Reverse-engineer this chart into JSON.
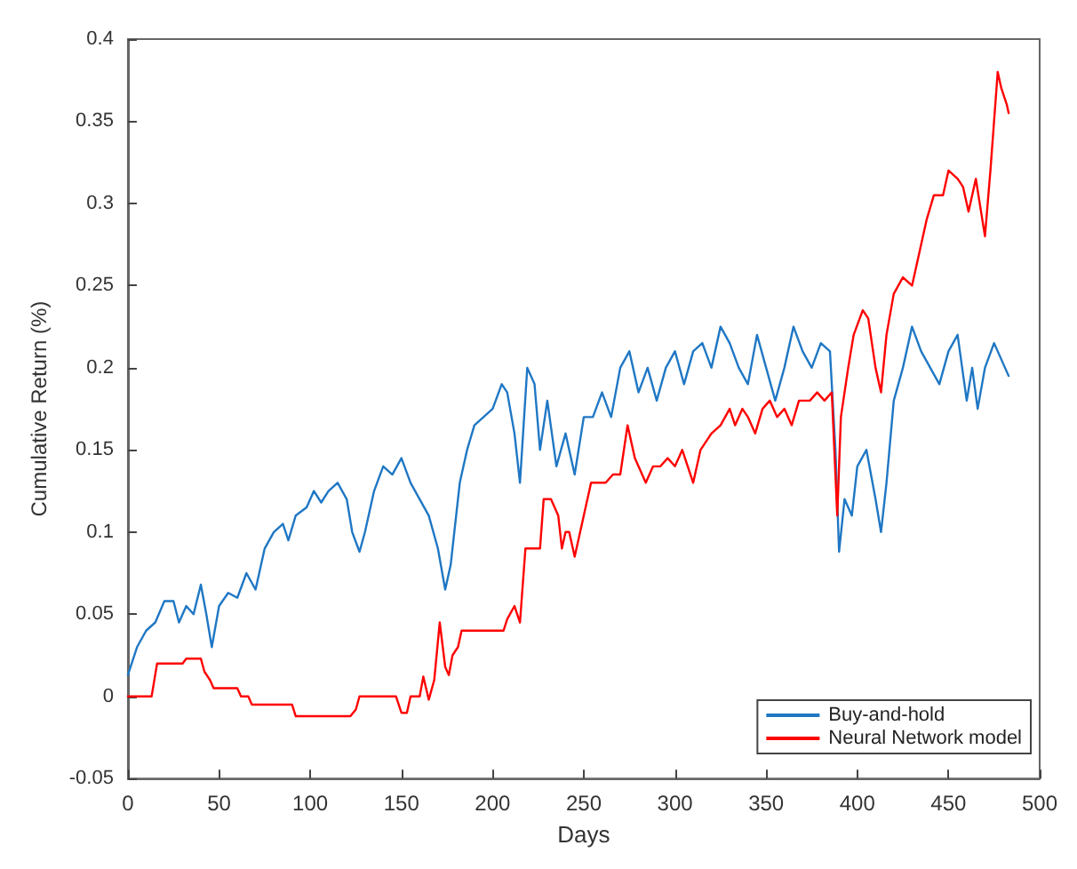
{
  "chart_data": {
    "type": "line",
    "xlabel": "Days",
    "ylabel": "Cumulative Return (%)",
    "xlim": [
      0,
      500
    ],
    "xticks": [
      0,
      50,
      100,
      150,
      200,
      250,
      300,
      350,
      400,
      450,
      500
    ],
    "ylim": [
      -0.05,
      0.4
    ],
    "yticks": [
      -0.05,
      0,
      0.05,
      0.1,
      0.15,
      0.2,
      0.25,
      0.3,
      0.35,
      0.4
    ],
    "grid": false,
    "legend": "bottom right",
    "marker": "none",
    "line_style": "solid",
    "series": [
      {
        "name": "Buy-and-hold",
        "color": "#1f77c4",
        "x": [
          0,
          5,
          10,
          15,
          20,
          25,
          28,
          32,
          36,
          40,
          43,
          46,
          50,
          55,
          60,
          65,
          70,
          75,
          80,
          85,
          88,
          92,
          98,
          102,
          106,
          110,
          115,
          120,
          123,
          127,
          130,
          135,
          140,
          145,
          150,
          155,
          160,
          165,
          170,
          174,
          177,
          182,
          186,
          190,
          195,
          200,
          205,
          208,
          212,
          215,
          219,
          223,
          226,
          230,
          235,
          240,
          245,
          250,
          255,
          260,
          265,
          270,
          275,
          280,
          285,
          290,
          295,
          300,
          305,
          310,
          315,
          320,
          325,
          330,
          335,
          340,
          345,
          350,
          355,
          360,
          365,
          370,
          375,
          380,
          385,
          388,
          390,
          393,
          397,
          400,
          405,
          410,
          413,
          416,
          420,
          425,
          430,
          435,
          440,
          445,
          450,
          455,
          460,
          463,
          466,
          470,
          475,
          479,
          483
        ],
        "values": [
          0.013,
          0.03,
          0.04,
          0.045,
          0.058,
          0.058,
          0.045,
          0.055,
          0.05,
          0.068,
          0.05,
          0.03,
          0.055,
          0.063,
          0.06,
          0.075,
          0.065,
          0.09,
          0.1,
          0.105,
          0.095,
          0.11,
          0.115,
          0.125,
          0.118,
          0.125,
          0.13,
          0.12,
          0.1,
          0.088,
          0.1,
          0.125,
          0.14,
          0.135,
          0.145,
          0.13,
          0.12,
          0.11,
          0.09,
          0.065,
          0.08,
          0.13,
          0.15,
          0.165,
          0.17,
          0.175,
          0.19,
          0.185,
          0.16,
          0.13,
          0.2,
          0.19,
          0.15,
          0.18,
          0.14,
          0.16,
          0.135,
          0.17,
          0.17,
          0.185,
          0.17,
          0.2,
          0.21,
          0.185,
          0.2,
          0.18,
          0.2,
          0.21,
          0.19,
          0.21,
          0.215,
          0.2,
          0.225,
          0.215,
          0.2,
          0.19,
          0.22,
          0.2,
          0.18,
          0.2,
          0.225,
          0.21,
          0.2,
          0.215,
          0.21,
          0.15,
          0.088,
          0.12,
          0.11,
          0.14,
          0.15,
          0.12,
          0.1,
          0.13,
          0.18,
          0.2,
          0.225,
          0.21,
          0.2,
          0.19,
          0.21,
          0.22,
          0.18,
          0.2,
          0.175,
          0.2,
          0.215,
          0.205,
          0.195
        ]
      },
      {
        "name": "Neural Network model",
        "color": "#ff0000",
        "x": [
          0,
          13,
          16,
          30,
          32,
          40,
          42,
          45,
          47,
          60,
          62,
          66,
          68,
          90,
          92,
          122,
          125,
          127,
          147,
          150,
          153,
          155,
          160,
          162,
          165,
          168,
          171,
          174,
          176,
          178,
          181,
          183,
          206,
          208,
          212,
          215,
          218,
          226,
          228,
          232,
          236,
          238,
          240,
          242,
          245,
          248,
          250,
          254,
          262,
          266,
          270,
          274,
          278,
          284,
          288,
          292,
          296,
          300,
          304,
          310,
          314,
          320,
          325,
          330,
          333,
          337,
          340,
          344,
          348,
          352,
          356,
          360,
          364,
          368,
          374,
          378,
          382,
          386,
          389,
          391,
          395,
          398,
          403,
          406,
          410,
          413,
          416,
          420,
          425,
          430,
          433,
          438,
          442,
          447,
          450,
          455,
          458,
          461,
          465,
          470,
          473,
          477,
          479,
          482,
          483
        ],
        "values": [
          0,
          0,
          0.02,
          0.02,
          0.023,
          0.023,
          0.015,
          0.01,
          0.005,
          0.005,
          0,
          0,
          -0.005,
          -0.005,
          -0.012,
          -0.012,
          -0.008,
          0,
          0,
          -0.01,
          -0.01,
          0,
          0,
          0.012,
          -0.002,
          0.01,
          0.045,
          0.018,
          0.013,
          0.025,
          0.03,
          0.04,
          0.04,
          0.047,
          0.055,
          0.045,
          0.09,
          0.09,
          0.12,
          0.12,
          0.11,
          0.09,
          0.1,
          0.1,
          0.085,
          0.1,
          0.11,
          0.13,
          0.13,
          0.135,
          0.135,
          0.165,
          0.145,
          0.13,
          0.14,
          0.14,
          0.145,
          0.14,
          0.15,
          0.13,
          0.15,
          0.16,
          0.165,
          0.175,
          0.165,
          0.175,
          0.17,
          0.16,
          0.175,
          0.18,
          0.17,
          0.175,
          0.165,
          0.18,
          0.18,
          0.185,
          0.18,
          0.185,
          0.11,
          0.17,
          0.2,
          0.22,
          0.235,
          0.23,
          0.2,
          0.185,
          0.22,
          0.245,
          0.255,
          0.25,
          0.265,
          0.29,
          0.305,
          0.305,
          0.32,
          0.315,
          0.31,
          0.295,
          0.315,
          0.28,
          0.32,
          0.38,
          0.37,
          0.36,
          0.355
        ]
      }
    ]
  }
}
